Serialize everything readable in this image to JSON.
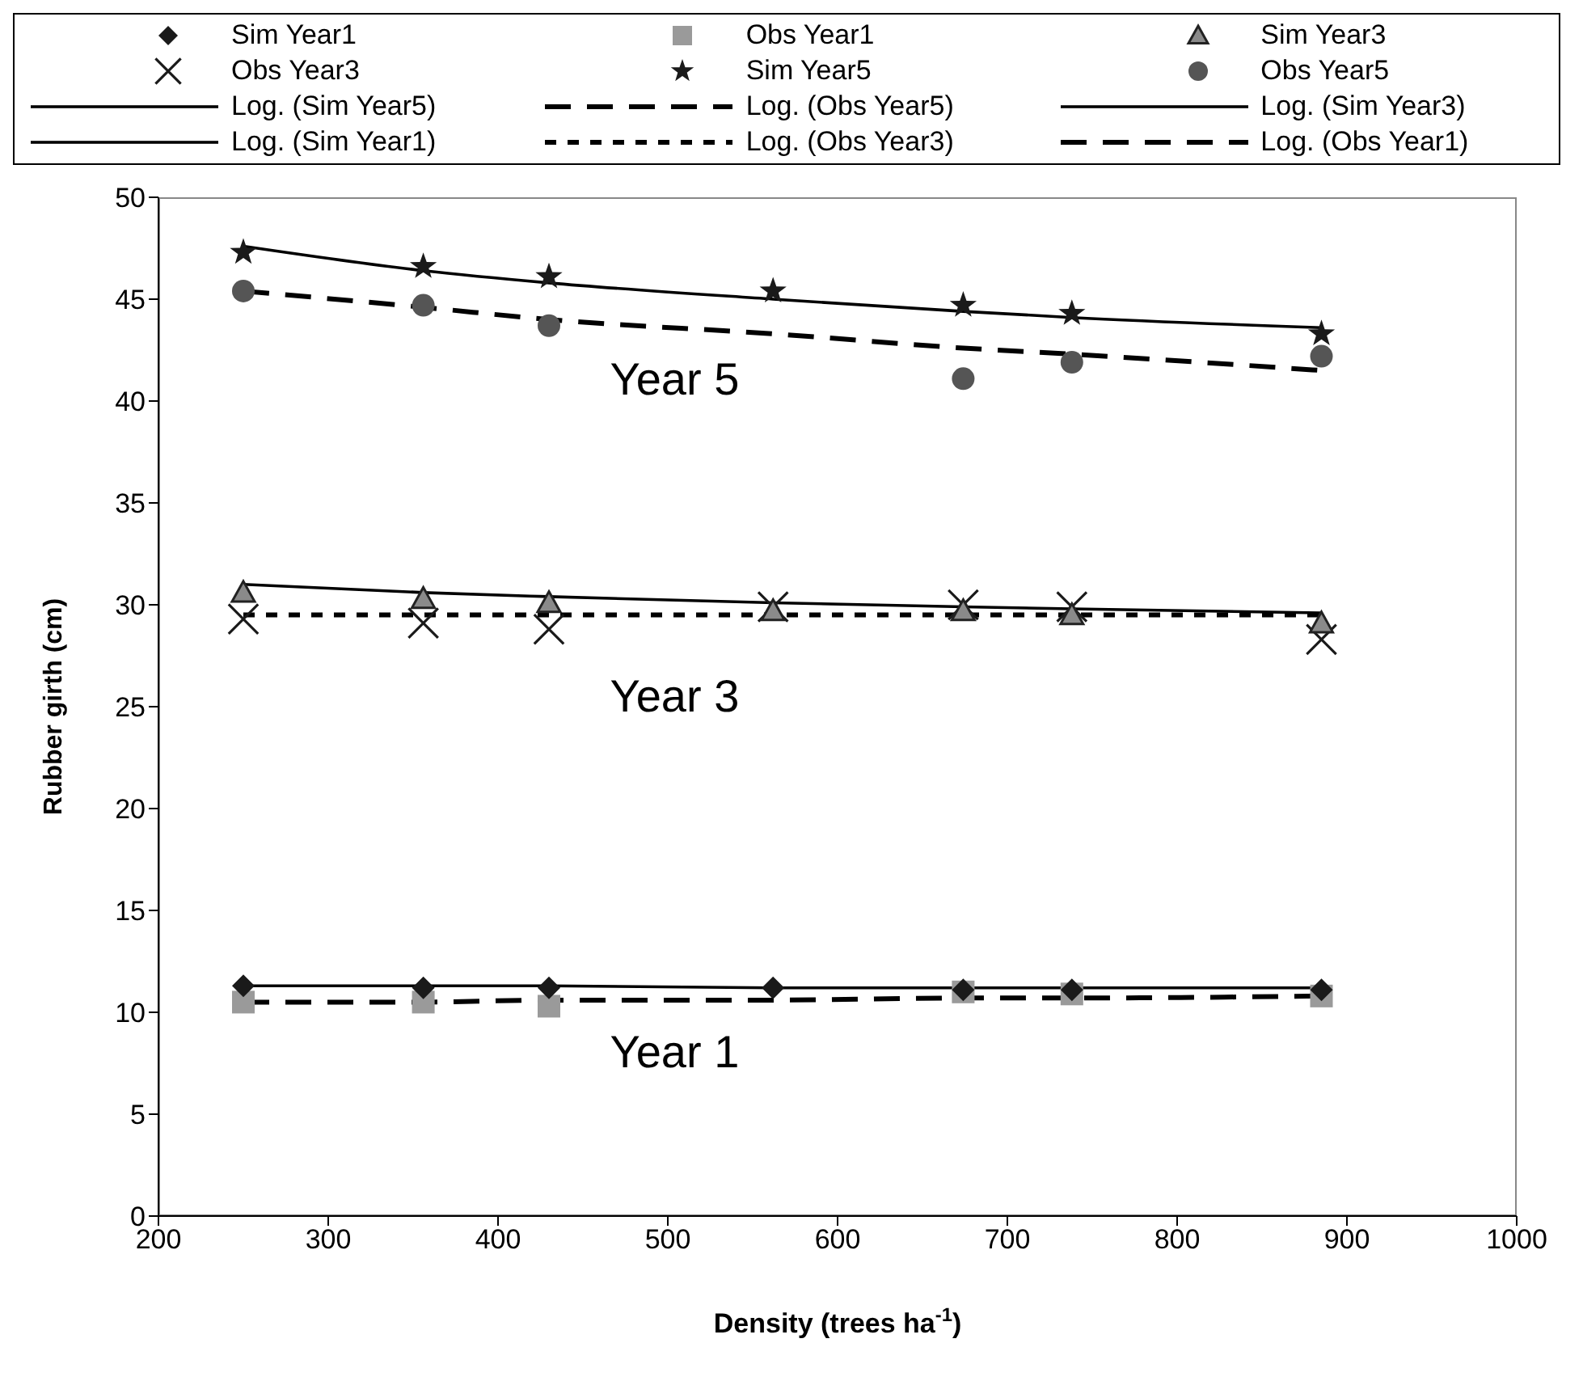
{
  "chart_data": {
    "type": "scatter",
    "xlabel": "Density (trees ha$^{-1}$)",
    "ylabel": "Rubber girth (cm)",
    "xlim": [
      200,
      1000
    ],
    "xticks": [
      200,
      300,
      400,
      500,
      600,
      700,
      800,
      900,
      1000
    ],
    "ylim": [
      0,
      50
    ],
    "yticks": [
      0,
      5,
      10,
      15,
      20,
      25,
      30,
      35,
      40,
      45,
      50
    ],
    "legend": "top",
    "x": [
      250,
      356,
      430,
      562,
      674,
      738,
      885
    ],
    "series": [
      {
        "name": "Sim Year1",
        "marker": "diamond",
        "color": "#1a1a1a",
        "values": [
          11.3,
          11.2,
          11.2,
          11.2,
          11.1,
          11.1,
          11.1
        ]
      },
      {
        "name": "Obs Year1",
        "marker": "square",
        "color": "#9a9a9a",
        "values": [
          10.5,
          10.5,
          10.3,
          null,
          11.0,
          10.9,
          10.8
        ]
      },
      {
        "name": "Sim Year3",
        "marker": "triangle",
        "color": "#8a8a8a",
        "values": [
          30.6,
          30.3,
          30.1,
          29.7,
          29.7,
          29.5,
          29.1
        ]
      },
      {
        "name": "Obs Year3",
        "marker": "cross",
        "color": "#1a1a1a",
        "values": [
          29.3,
          29.1,
          28.8,
          29.9,
          30.0,
          29.9,
          28.3
        ]
      },
      {
        "name": "Sim Year5",
        "marker": "star",
        "color": "#1a1a1a",
        "values": [
          47.3,
          46.6,
          46.1,
          45.4,
          44.7,
          44.3,
          43.3
        ]
      },
      {
        "name": "Obs Year5",
        "marker": "circle",
        "color": "#555555",
        "values": [
          45.4,
          44.7,
          43.7,
          null,
          41.1,
          41.9,
          42.2
        ]
      },
      {
        "name": "Log. (Sim Year5)",
        "type": "line",
        "line_style": "solid",
        "color": "#000000",
        "values": [
          47.6,
          46.4,
          45.8,
          45.0,
          44.4,
          44.1,
          43.6
        ]
      },
      {
        "name": "Log. (Obs Year5)",
        "type": "line",
        "line_style": "dashed",
        "color": "#000000",
        "values": [
          45.4,
          44.6,
          44.0,
          43.3,
          42.6,
          42.3,
          41.5
        ]
      },
      {
        "name": "Log. (Sim Year3)",
        "type": "line",
        "line_style": "solid",
        "color": "#000000",
        "values": [
          31.0,
          30.6,
          30.4,
          30.1,
          29.9,
          29.8,
          29.6
        ]
      },
      {
        "name": "Log. (Sim Year1)",
        "type": "line",
        "line_style": "solid",
        "color": "#000000",
        "values": [
          11.3,
          11.3,
          11.3,
          11.2,
          11.2,
          11.2,
          11.2
        ]
      },
      {
        "name": "Log. (Obs Year3)",
        "type": "line",
        "line_style": "dotted",
        "color": "#000000",
        "values": [
          29.5,
          29.5,
          29.5,
          29.5,
          29.5,
          29.5,
          29.5
        ]
      },
      {
        "name": "Log. (Obs Year1)",
        "type": "line",
        "line_style": "dashed",
        "color": "#000000",
        "values": [
          10.5,
          10.5,
          10.6,
          10.6,
          10.7,
          10.7,
          10.8
        ]
      }
    ],
    "annotations": [
      "Year 5",
      "Year 3",
      "Year 1"
    ]
  }
}
